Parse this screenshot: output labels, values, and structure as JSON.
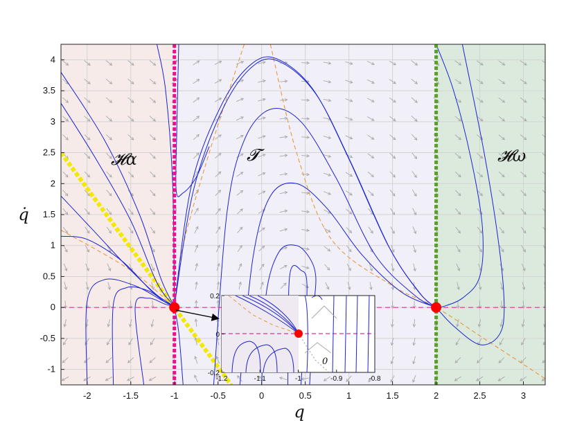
{
  "chart_data": {
    "type": "phase_portrait",
    "xlabel": "q",
    "ylabel": "q̇",
    "xlim": [
      -2.3,
      3.25
    ],
    "ylim": [
      -1.25,
      4.25
    ],
    "xticks": [
      -2,
      -1.5,
      -1,
      -0.5,
      0,
      0.5,
      1,
      1.5,
      2,
      2.5,
      3
    ],
    "xtick_labels": [
      "-2",
      "-1.5",
      "-1",
      "-0.5",
      "0",
      "0.5",
      "1",
      "1.5",
      "2",
      "2.5",
      "3"
    ],
    "yticks": [
      -1,
      -0.5,
      0,
      0.5,
      1,
      1.5,
      2,
      2.5,
      3,
      3.5,
      4
    ],
    "ytick_labels": [
      "-1",
      "-0.5",
      "0",
      "0.5",
      "1",
      "1.5",
      "2",
      "2.5",
      "3",
      "3.5",
      "4"
    ],
    "grid": true,
    "regions": [
      {
        "label": "𝓗α",
        "x_range": [
          -2.3,
          -1
        ],
        "color": "#f7ebea"
      },
      {
        "label": "𝓣",
        "x_range": [
          -1,
          2
        ],
        "color": "#f1eff8"
      },
      {
        "label": "𝓗ω",
        "x_range": [
          2,
          3.25
        ],
        "color": "#dbeadc"
      }
    ],
    "boundaries": [
      {
        "x": -1,
        "color": "#e8128a",
        "style": "dotted"
      },
      {
        "x": 2,
        "color": "#5a9e2e",
        "style": "dotted"
      }
    ],
    "equilibria": [
      {
        "q": -1,
        "qdot": 0,
        "color": "#ff0000"
      },
      {
        "q": 2,
        "qdot": 0,
        "color": "#ff0000"
      }
    ],
    "yellow_line": {
      "points": [
        [
          -2.3,
          2.5
        ],
        [
          -0.35,
          -1.25
        ]
      ],
      "color": "#f2e800"
    },
    "horizontal_reference": {
      "y": 0,
      "color": "#e0309a",
      "style": "dashed"
    },
    "nullclines": [
      {
        "name": "",
        "points": [
          [
            -0.2,
            4.25
          ],
          [
            -0.6,
            2.5
          ],
          [
            -0.9,
            1.0
          ],
          [
            -1.0,
            0.0
          ]
        ]
      },
      {
        "name": "",
        "points": [
          [
            -2.3,
            1.25
          ],
          [
            -1.5,
            0.6
          ],
          [
            -1.0,
            0.0
          ]
        ]
      },
      {
        "name": "",
        "points": [
          [
            0.1,
            4.25
          ],
          [
            0.4,
            2.5
          ],
          [
            0.8,
            1.1
          ],
          [
            1.5,
            0.35
          ],
          [
            2.0,
            0.0
          ],
          [
            2.6,
            -0.55
          ],
          [
            3.25,
            -1.15
          ]
        ]
      }
    ],
    "trajectories": [
      {
        "points": [
          [
            -1.0,
            0.02
          ],
          [
            -0.8,
            2.0
          ],
          [
            -0.45,
            3.3
          ],
          [
            -0.1,
            3.95
          ],
          [
            0.2,
            4.0
          ],
          [
            0.6,
            3.5
          ],
          [
            1.0,
            2.4
          ],
          [
            1.45,
            1.0
          ],
          [
            1.8,
            0.25
          ],
          [
            2.0,
            0.0
          ]
        ]
      },
      {
        "points": [
          [
            -1.0,
            0.02
          ],
          [
            -0.78,
            1.9
          ],
          [
            -0.43,
            3.25
          ],
          [
            -0.08,
            3.92
          ],
          [
            0.22,
            3.96
          ],
          [
            0.62,
            3.45
          ],
          [
            1.02,
            2.35
          ],
          [
            1.47,
            0.95
          ],
          [
            1.82,
            0.22
          ],
          [
            2.0,
            0.0
          ]
        ]
      },
      {
        "points": [
          [
            -0.55,
            -1.25
          ],
          [
            -0.4,
            1.5
          ],
          [
            -0.2,
            2.7
          ],
          [
            0.1,
            3.2
          ],
          [
            0.45,
            3.0
          ],
          [
            0.85,
            2.1
          ],
          [
            1.3,
            0.85
          ],
          [
            1.75,
            0.2
          ],
          [
            2.0,
            0.0
          ]
        ]
      },
      {
        "points": [
          [
            -0.25,
            -1.25
          ],
          [
            -0.1,
            0.8
          ],
          [
            0.1,
            1.8
          ],
          [
            0.4,
            2.0
          ],
          [
            0.75,
            1.6
          ],
          [
            1.15,
            0.85
          ],
          [
            1.6,
            0.25
          ],
          [
            2.0,
            0.0
          ]
        ]
      },
      {
        "points": [
          [
            0.0,
            -1.25
          ],
          [
            0.05,
            0.2
          ],
          [
            0.2,
            0.9
          ],
          [
            0.4,
            1.0
          ],
          [
            0.55,
            0.8
          ],
          [
            0.62,
            0.5
          ],
          [
            0.6,
            0.0
          ],
          [
            0.55,
            -1.25
          ]
        ]
      },
      {
        "points": [
          [
            0.3,
            -1.25
          ],
          [
            0.32,
            0.5
          ],
          [
            0.45,
            0.6
          ],
          [
            0.52,
            0.3
          ],
          [
            0.45,
            -1.25
          ]
        ]
      },
      {
        "points": [
          [
            2.3,
            4.25
          ],
          [
            2.55,
            2.5
          ],
          [
            2.72,
            1.0
          ],
          [
            2.78,
            0.0
          ],
          [
            2.72,
            -0.45
          ],
          [
            2.5,
            -0.6
          ],
          [
            2.2,
            -0.3
          ],
          [
            2.0,
            0.0
          ]
        ]
      },
      {
        "points": [
          [
            2.0,
            4.25
          ],
          [
            2.2,
            3.5
          ],
          [
            2.4,
            2.4
          ],
          [
            2.53,
            1.3
          ],
          [
            2.5,
            0.5
          ],
          [
            2.3,
            0.15
          ],
          [
            2.05,
            0.0
          ]
        ]
      },
      {
        "points": [
          [
            -2.3,
            3.8
          ],
          [
            -1.8,
            2.7
          ],
          [
            -1.4,
            1.5
          ],
          [
            -1.15,
            0.45
          ],
          [
            -1.0,
            0.02
          ]
        ]
      },
      {
        "points": [
          [
            -2.3,
            3.3
          ],
          [
            -1.9,
            2.4
          ],
          [
            -1.5,
            1.4
          ],
          [
            -1.2,
            0.4
          ],
          [
            -1.0,
            0.02
          ]
        ]
      },
      {
        "points": [
          [
            -2.3,
            1.8
          ],
          [
            -1.9,
            1.2
          ],
          [
            -1.5,
            0.6
          ],
          [
            -1.2,
            0.2
          ],
          [
            -1.0,
            0.02
          ]
        ]
      },
      {
        "points": [
          [
            -2.3,
            1.15
          ],
          [
            -2.0,
            1.1
          ],
          [
            -1.6,
            0.75
          ],
          [
            -1.25,
            0.25
          ],
          [
            -1.0,
            0.02
          ]
        ]
      },
      {
        "points": [
          [
            -2.0,
            -1.25
          ],
          [
            -2.0,
            0.1
          ],
          [
            -1.8,
            0.45
          ],
          [
            -1.45,
            0.35
          ],
          [
            -1.15,
            0.12
          ],
          [
            -1.0,
            0.02
          ]
        ]
      },
      {
        "points": [
          [
            -1.7,
            -1.25
          ],
          [
            -1.7,
            0.05
          ],
          [
            -1.55,
            0.32
          ],
          [
            -1.3,
            0.27
          ],
          [
            -1.1,
            0.08
          ],
          [
            -1.0,
            0.02
          ]
        ]
      },
      {
        "points": [
          [
            -1.35,
            -1.25
          ],
          [
            -1.45,
            0.0
          ],
          [
            -1.3,
            0.15
          ],
          [
            -1.1,
            0.05
          ],
          [
            -1.0,
            0.02
          ]
        ]
      },
      {
        "points": [
          [
            -1.2,
            4.25
          ],
          [
            -1.1,
            3.5
          ],
          [
            -1.02,
            2.0
          ],
          [
            -1.0,
            0.02
          ]
        ]
      },
      {
        "points": [
          [
            -0.95,
            4.25
          ],
          [
            -0.97,
            3.0
          ],
          [
            -0.98,
            1.9
          ],
          [
            -0.9,
            1.85
          ],
          [
            -0.75,
            2.1
          ],
          [
            -0.6,
            2.6
          ]
        ]
      },
      {
        "points": [
          [
            -0.9,
            -1.25
          ],
          [
            -0.95,
            -0.4
          ],
          [
            -1.0,
            0.0
          ]
        ]
      }
    ],
    "inset": {
      "xlim": [
        -1.2,
        -0.8
      ],
      "ylim": [
        -0.2,
        0.2
      ],
      "xticks": [
        -1.2,
        -1.1,
        -1,
        -0.9,
        -0.8
      ],
      "xtick_labels": [
        "-1.2",
        "-1.1",
        "-1",
        "-0.9",
        "-0.8"
      ],
      "yticks": [
        -0.2,
        0,
        0.2
      ],
      "ytick_labels": [
        "-0.2",
        "0",
        "0.2"
      ],
      "equilibrium": {
        "q": -1,
        "qdot": 0
      },
      "annotation": "0"
    }
  }
}
